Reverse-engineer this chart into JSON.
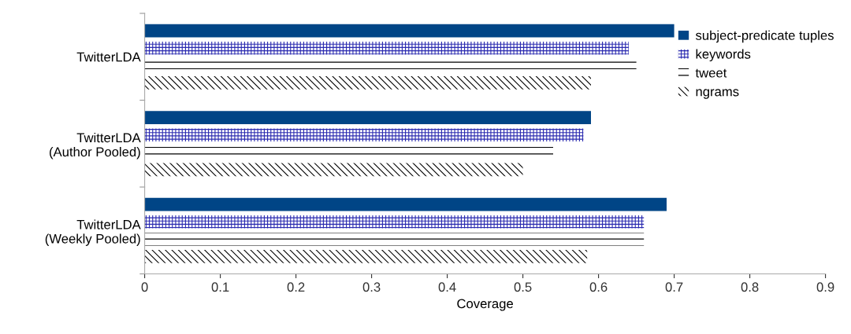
{
  "chart_data": {
    "type": "bar",
    "orientation": "horizontal",
    "xlabel": "Coverage",
    "categories": [
      "TwitterLDA",
      "TwitterLDA\n(Author Pooled)",
      "TwitterLDA\n(Weekly Pooled)"
    ],
    "series": [
      {
        "name": "subject-predicate tuples",
        "color": "#004586",
        "values": [
          0.7,
          0.59,
          0.69
        ]
      },
      {
        "name": "keywords",
        "color": "#2a2ab0",
        "values": [
          0.64,
          0.58,
          0.66
        ]
      },
      {
        "name": "tweet",
        "color": "#000000",
        "values": [
          0.65,
          0.54,
          0.66
        ]
      },
      {
        "name": "ngrams",
        "color": "#000000",
        "values": [
          0.59,
          0.5,
          0.585
        ]
      }
    ],
    "xlim": [
      0,
      0.9
    ],
    "xticks": [
      0,
      0.1,
      0.2,
      0.3,
      0.4,
      0.5,
      0.6,
      0.7,
      0.8,
      0.9
    ],
    "grid": false,
    "legend": "top right"
  }
}
